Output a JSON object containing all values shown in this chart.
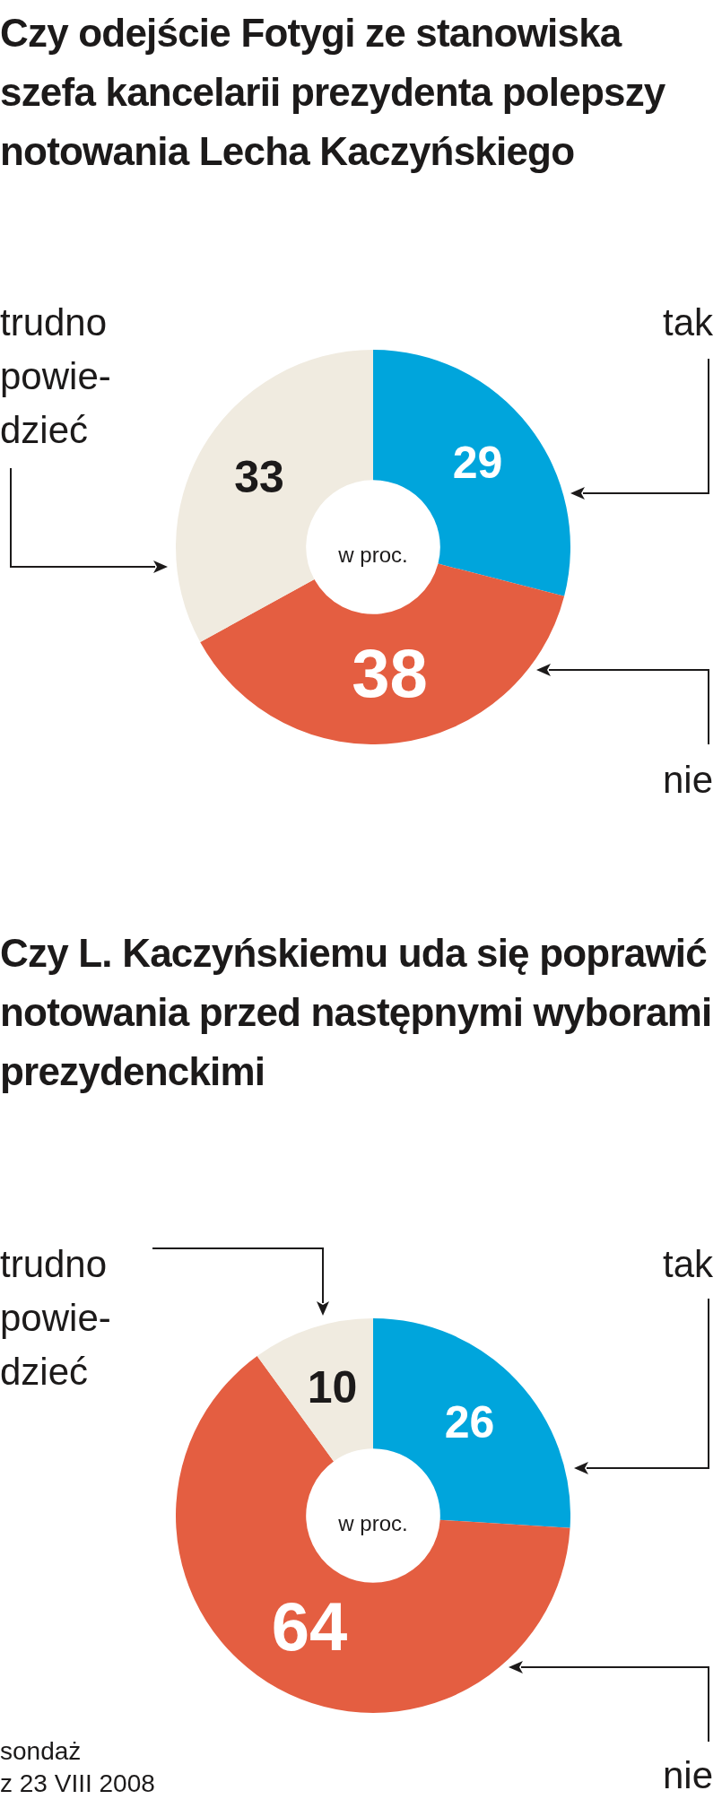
{
  "chart_data": [
    {
      "type": "donut",
      "title": "Czy odejście Fotygi ze stanowiska szefa kancelarii prezydenta polepszy notowania Lecha Kaczyńskiego",
      "categories": [
        "tak",
        "nie",
        "trudno\npowie-\ndzieć"
      ],
      "values": [
        29,
        38,
        33
      ],
      "colors": [
        "#00a5dc",
        "#e45e41",
        "#f0ebe0"
      ],
      "data_labels": true,
      "annotations": [
        "w proc."
      ]
    },
    {
      "type": "donut",
      "title": "Czy L. Kaczyńskiemu uda się poprawić notowania przed następnymi wyborami prezydenckimi",
      "categories": [
        "tak",
        "nie",
        "trudno\npowie-\ndzieć"
      ],
      "values": [
        26,
        64,
        10
      ],
      "colors": [
        "#00a5dc",
        "#e45e41",
        "#f0ebe0"
      ],
      "data_labels": true,
      "annotations": [
        "w proc.",
        "sondaż\nz 23 VIII 2008"
      ]
    }
  ]
}
